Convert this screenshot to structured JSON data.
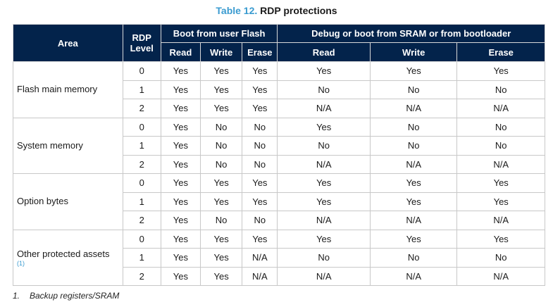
{
  "caption": {
    "number": "Table 12.",
    "title": "RDP protections"
  },
  "header": {
    "area": "Area",
    "rdp_line1": "RDP",
    "rdp_line2": "Level",
    "group_user_flash": "Boot from user Flash",
    "group_debug": "Debug or boot from SRAM or from bootloader",
    "sub": [
      "Read",
      "Write",
      "Erase",
      "Read",
      "Write",
      "Erase"
    ]
  },
  "groups": [
    {
      "area": "Flash main memory",
      "area_ref": "",
      "rows": [
        {
          "level": "0",
          "cells": [
            "Yes",
            "Yes",
            "Yes",
            "Yes",
            "Yes",
            "Yes"
          ]
        },
        {
          "level": "1",
          "cells": [
            "Yes",
            "Yes",
            "Yes",
            "No",
            "No",
            "No"
          ]
        },
        {
          "level": "2",
          "cells": [
            "Yes",
            "Yes",
            "Yes",
            "N/A",
            "N/A",
            "N/A"
          ]
        }
      ]
    },
    {
      "area": "System memory",
      "area_ref": "",
      "rows": [
        {
          "level": "0",
          "cells": [
            "Yes",
            "No",
            "No",
            "Yes",
            "No",
            "No"
          ]
        },
        {
          "level": "1",
          "cells": [
            "Yes",
            "No",
            "No",
            "No",
            "No",
            "No"
          ]
        },
        {
          "level": "2",
          "cells": [
            "Yes",
            "No",
            "No",
            "N/A",
            "N/A",
            "N/A"
          ]
        }
      ]
    },
    {
      "area": "Option bytes",
      "area_ref": "",
      "rows": [
        {
          "level": "0",
          "cells": [
            "Yes",
            "Yes",
            "Yes",
            "Yes",
            "Yes",
            "Yes"
          ]
        },
        {
          "level": "1",
          "cells": [
            "Yes",
            "Yes",
            "Yes",
            "Yes",
            "Yes",
            "Yes"
          ]
        },
        {
          "level": "2",
          "cells": [
            "Yes",
            "No",
            "No",
            "N/A",
            "N/A",
            "N/A"
          ]
        }
      ]
    },
    {
      "area": "Other protected assets",
      "area_ref": "(1)",
      "rows": [
        {
          "level": "0",
          "cells": [
            "Yes",
            "Yes",
            "Yes",
            "Yes",
            "Yes",
            "Yes"
          ]
        },
        {
          "level": "1",
          "cells": [
            "Yes",
            "Yes",
            "N/A",
            "No",
            "No",
            "No"
          ]
        },
        {
          "level": "2",
          "cells": [
            "Yes",
            "Yes",
            "N/A",
            "N/A",
            "N/A",
            "N/A"
          ]
        }
      ]
    }
  ],
  "footnote": {
    "number": "1.",
    "text": "Backup registers/SRAM"
  }
}
